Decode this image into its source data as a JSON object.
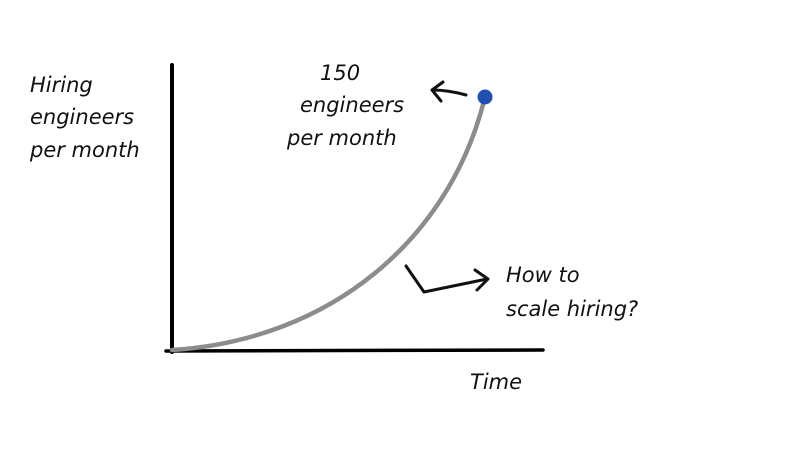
{
  "y_axis_label": [
    "Hiring",
    "engineers",
    "per month"
  ],
  "x_axis_label": "Time",
  "peak_annotation": [
    "150",
    "engineers",
    "per month"
  ],
  "question_annotation": [
    "How to",
    "scale hiring?"
  ],
  "colors": {
    "curve": "#8c8c8c",
    "point": "#1f4fb0",
    "axes": "#000000"
  }
}
